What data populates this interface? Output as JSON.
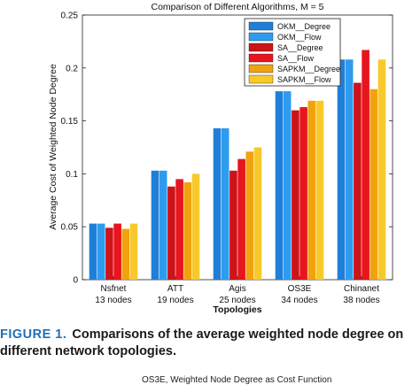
{
  "chart_data": {
    "type": "bar",
    "title": "Comparison of Different Algorithms, M = 5",
    "xlabel": "Topologies",
    "ylabel": "Average Cost of Weighted Node Degree",
    "ylim": [
      0,
      0.25
    ],
    "yticks": [
      "0",
      "0.05",
      "0.1",
      "0.15",
      "0.2",
      "0.25"
    ],
    "grid": false,
    "legend_position": "top-right",
    "categories": [
      [
        "Nsfnet",
        "13 nodes"
      ],
      [
        "ATT",
        "19 nodes"
      ],
      [
        "Agis",
        "25 nodes"
      ],
      [
        "OS3E",
        "34 nodes"
      ],
      [
        "Chinanet",
        "38 nodes"
      ]
    ],
    "series": [
      {
        "name": "OKM__Degree",
        "color": "#1f7fd8",
        "values": [
          0.053,
          0.103,
          0.143,
          0.178,
          0.208
        ]
      },
      {
        "name": "OKM__Flow",
        "color": "#2f9bef",
        "values": [
          0.053,
          0.103,
          0.143,
          0.178,
          0.208
        ]
      },
      {
        "name": "SA__Degree",
        "color": "#cc1419",
        "values": [
          0.049,
          0.088,
          0.103,
          0.16,
          0.186
        ]
      },
      {
        "name": "SA__Flow",
        "color": "#e8141e",
        "values": [
          0.053,
          0.095,
          0.114,
          0.163,
          0.217
        ]
      },
      {
        "name": "SAPKM__Degree",
        "color": "#f2a10f",
        "values": [
          0.048,
          0.092,
          0.121,
          0.169,
          0.18
        ]
      },
      {
        "name": "SAPKM__Flow",
        "color": "#f9c92b",
        "values": [
          0.053,
          0.1,
          0.125,
          0.169,
          0.208
        ]
      }
    ]
  },
  "caption": {
    "label": "FIGURE 1.",
    "text": "Comparisons of the average weighted node degree on different network topologies."
  },
  "next_figure_title": "OS3E, Weighted Node Degree as Cost Function"
}
